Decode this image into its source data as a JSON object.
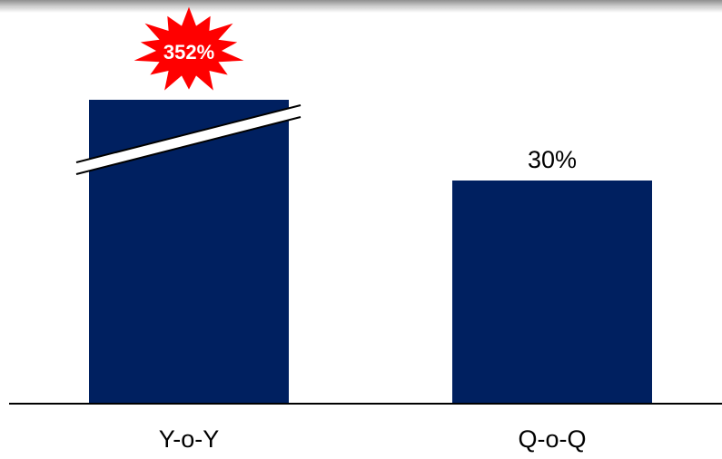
{
  "chart_data": {
    "type": "bar",
    "categories": [
      "Y-o-Y",
      "Q-o-Q"
    ],
    "values": [
      352,
      30
    ],
    "value_labels": [
      "352%",
      "30%"
    ],
    "unit": "%",
    "axis_break_on": "Y-o-Y",
    "highlight": {
      "category": "Y-o-Y",
      "label": "352%",
      "shape": "starburst"
    },
    "y_axis_visible": false,
    "grid": false,
    "legend": "none"
  },
  "colors": {
    "bar": "#002060",
    "highlight": "#ff0000",
    "axis": "#000000",
    "top_band": "#a6a6a6"
  }
}
